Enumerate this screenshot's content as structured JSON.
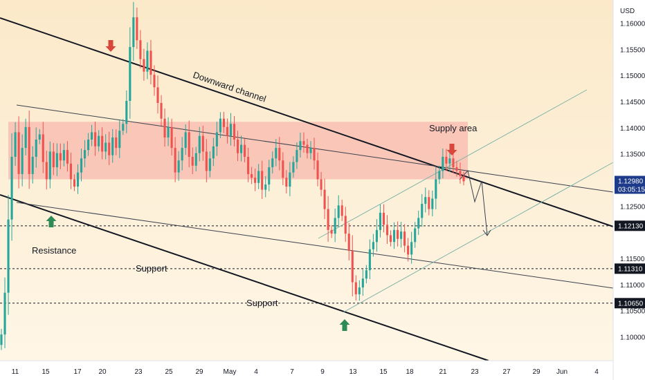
{
  "chart_data": {
    "type": "candlestick",
    "currency": "USD",
    "y_range": [
      1.0955,
      1.1645
    ],
    "y_ticks": [
      "1.16000",
      "1.15500",
      "1.15000",
      "1.14500",
      "1.14000",
      "1.13500",
      "1.12500",
      "1.11500",
      "1.11000",
      "1.10500",
      "1.10000"
    ],
    "x_ticks": [
      "11",
      "15",
      "17",
      "20",
      "23",
      "25",
      "29",
      "May",
      "4",
      "7",
      "9",
      "13",
      "15",
      "18",
      "21",
      "23",
      "27",
      "29",
      "Jun",
      "4"
    ],
    "price_labels": [
      {
        "value": 1.1298,
        "label": "1.12980",
        "sub": "03:05:15",
        "color": "#1e3a8a"
      },
      {
        "value": 1.1213,
        "label": "1.12130",
        "color": "#131722"
      },
      {
        "value": 1.1131,
        "label": "1.11310",
        "color": "#131722"
      },
      {
        "value": 1.1065,
        "label": "1.10650",
        "color": "#131722"
      }
    ],
    "horizontal_levels": [
      1.1213,
      1.1131,
      1.1065
    ],
    "supply_zone": {
      "from": 1.1302,
      "to": 1.1412
    },
    "annotations": [
      "Downward channel",
      "Supply area",
      "Resistance",
      "Support",
      "Support"
    ],
    "up_color": "#26a69a",
    "down_color": "#ef5350",
    "ohlc_start": 1.0985,
    "ohlc_closes": [
      1.1005,
      1.1085,
      1.1225,
      1.1345,
      1.1392,
      1.1312,
      1.1362,
      1.1402,
      1.1312,
      1.1345,
      1.1378,
      1.1388,
      1.1335,
      1.1302,
      1.1355,
      1.1325,
      1.1352,
      1.1338,
      1.1358,
      1.1332,
      1.1302,
      1.1288,
      1.1315,
      1.1342,
      1.1358,
      1.1378,
      1.1392,
      1.1365,
      1.1385,
      1.1355,
      1.1372,
      1.1348,
      1.1382,
      1.1362,
      1.1395,
      1.1408,
      1.1452,
      1.1555,
      1.1612,
      1.1568,
      1.1532,
      1.1508,
      1.1548,
      1.1502,
      1.1478,
      1.1448,
      1.1418,
      1.1382,
      1.1402,
      1.1362,
      1.1315,
      1.1338,
      1.1362,
      1.1392,
      1.1345,
      1.1328,
      1.1352,
      1.1385,
      1.1355,
      1.1318,
      1.1342,
      1.1365,
      1.1392,
      1.1418,
      1.1402,
      1.1385,
      1.1408,
      1.1378,
      1.1352,
      1.1368,
      1.1345,
      1.1312,
      1.1305,
      1.1295,
      1.1318,
      1.1282,
      1.1292,
      1.1325,
      1.1342,
      1.1362,
      1.1338,
      1.1305,
      1.1288,
      1.1315,
      1.1335,
      1.1358,
      1.1375,
      1.1368,
      1.1352,
      1.1362,
      1.1338,
      1.1302,
      1.1282,
      1.1245,
      1.1205,
      1.1198,
      1.1228,
      1.1252,
      1.1232,
      1.1198,
      1.1165,
      1.1105,
      1.1082,
      1.1095,
      1.1112,
      1.1128,
      1.1168,
      1.1182,
      1.1205,
      1.1238,
      1.1215,
      1.1195,
      1.1182,
      1.1205,
      1.1188,
      1.1202,
      1.1175,
      1.1158,
      1.1182,
      1.1208,
      1.1228,
      1.1255,
      1.1268,
      1.1245,
      1.1265,
      1.1302,
      1.1318,
      1.1345,
      1.1332,
      1.1342,
      1.1325,
      1.1318,
      1.1308,
      1.1298
    ]
  }
}
